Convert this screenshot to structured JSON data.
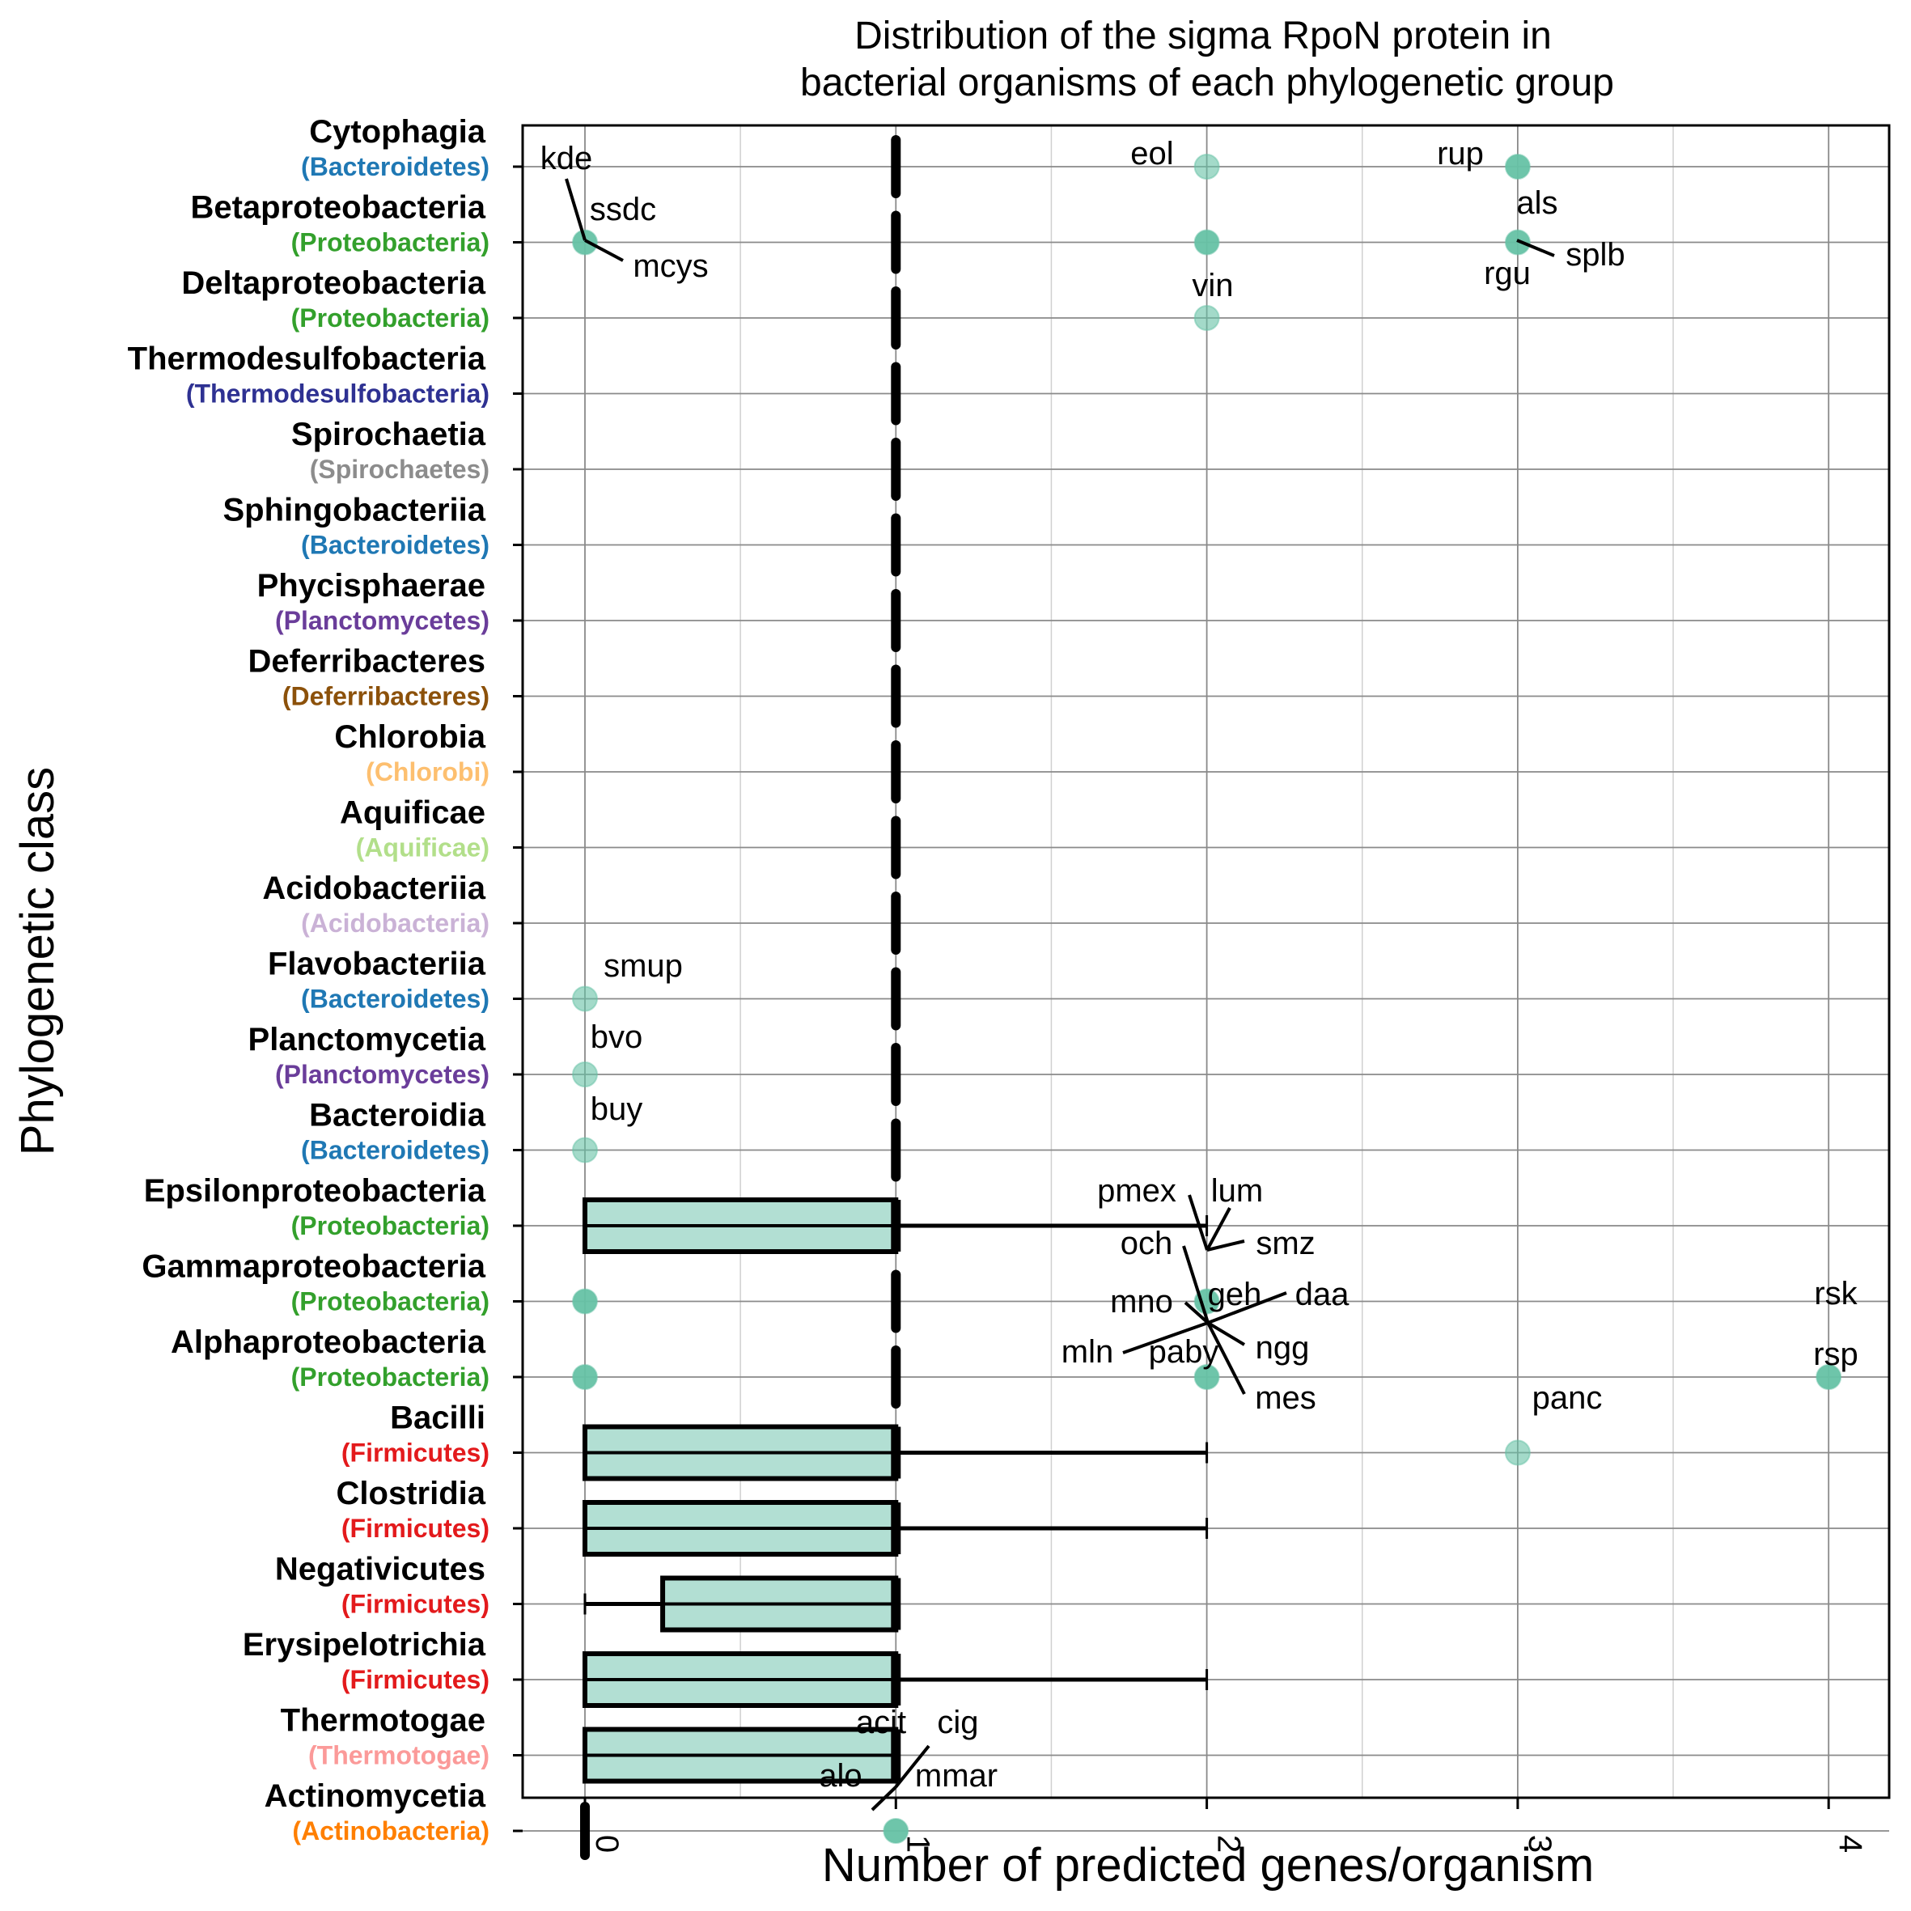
{
  "chart_data": {
    "type": "boxplot",
    "orientation": "horizontal",
    "title": [
      "Distribution of the sigma RpoN protein in",
      "bacterial organisms of each phylogenetic group"
    ],
    "xlabel": "Number of predicted genes/organism",
    "ylabel": "Phylogenetic class",
    "xlim": [
      -0.2,
      4.15
    ],
    "x_ticks": [
      0,
      1,
      2,
      3,
      4
    ],
    "x_tick_labels": [
      "0",
      "1",
      "2",
      "3",
      "4"
    ],
    "x_minor_ticks": [
      0.5,
      1.5,
      2.5,
      3.5
    ],
    "grid": true,
    "reference_line": {
      "x": 1,
      "style": "dashed",
      "color": "#000000"
    },
    "colors": {
      "box_fill": "#b2dfd3",
      "point": "#66c2a5",
      "box_stroke": "#000000"
    },
    "categories": [
      {
        "name": "Cytophagia",
        "phylum": "(Bacteroidetes)",
        "phylum_color": "#1f78b4"
      },
      {
        "name": "Betaproteobacteria",
        "phylum": "(Proteobacteria)",
        "phylum_color": "#33a02c"
      },
      {
        "name": "Deltaproteobacteria",
        "phylum": "(Proteobacteria)",
        "phylum_color": "#33a02c"
      },
      {
        "name": "Thermodesulfobacteria",
        "phylum": "(Thermodesulfobacteria)",
        "phylum_color": "#2e3192"
      },
      {
        "name": "Spirochaetia",
        "phylum": "(Spirochaetes)",
        "phylum_color": "#8c8c8c"
      },
      {
        "name": "Sphingobacteriia",
        "phylum": "(Bacteroidetes)",
        "phylum_color": "#1f78b4"
      },
      {
        "name": "Phycisphaerae",
        "phylum": "(Planctomycetes)",
        "phylum_color": "#6a3d9a"
      },
      {
        "name": "Deferribacteres",
        "phylum": "(Deferribacteres)",
        "phylum_color": "#8c510a"
      },
      {
        "name": "Chlorobia",
        "phylum": "(Chlorobi)",
        "phylum_color": "#fdbf6f"
      },
      {
        "name": "Aquificae",
        "phylum": "(Aquificae)",
        "phylum_color": "#b2df8a"
      },
      {
        "name": "Acidobacteriia",
        "phylum": "(Acidobacteria)",
        "phylum_color": "#cab2d6"
      },
      {
        "name": "Flavobacteriia",
        "phylum": "(Bacteroidetes)",
        "phylum_color": "#1f78b4"
      },
      {
        "name": "Planctomycetia",
        "phylum": "(Planctomycetes)",
        "phylum_color": "#6a3d9a"
      },
      {
        "name": "Bacteroidia",
        "phylum": "(Bacteroidetes)",
        "phylum_color": "#1f78b4"
      },
      {
        "name": "Epsilonproteobacteria",
        "phylum": "(Proteobacteria)",
        "phylum_color": "#33a02c"
      },
      {
        "name": "Gammaproteobacteria",
        "phylum": "(Proteobacteria)",
        "phylum_color": "#33a02c"
      },
      {
        "name": "Alphaproteobacteria",
        "phylum": "(Proteobacteria)",
        "phylum_color": "#33a02c"
      },
      {
        "name": "Bacilli",
        "phylum": "(Firmicutes)",
        "phylum_color": "#e31a1c"
      },
      {
        "name": "Clostridia",
        "phylum": "(Firmicutes)",
        "phylum_color": "#e31a1c"
      },
      {
        "name": "Negativicutes",
        "phylum": "(Firmicutes)",
        "phylum_color": "#e31a1c"
      },
      {
        "name": "Erysipelotrichia",
        "phylum": "(Firmicutes)",
        "phylum_color": "#e31a1c"
      },
      {
        "name": "Thermotogae",
        "phylum": "(Thermotogae)",
        "phylum_color": "#fb9a99"
      },
      {
        "name": "Actinomycetia",
        "phylum": "(Actinobacteria)",
        "phylum_color": "#ff7f00"
      }
    ],
    "boxes": [
      {
        "category": "Epsilonproteobacteria",
        "whisker_low": 0,
        "q1": 0,
        "median": 1,
        "q3": 1,
        "whisker_high": 2
      },
      {
        "category": "Bacilli",
        "whisker_low": 0,
        "q1": 0,
        "median": 1,
        "q3": 1,
        "whisker_high": 2
      },
      {
        "category": "Clostridia",
        "whisker_low": 0,
        "q1": 0,
        "median": 1,
        "q3": 1,
        "whisker_high": 2
      },
      {
        "category": "Negativicutes",
        "whisker_low": 0,
        "q1": 0.25,
        "median": 1,
        "q3": 1,
        "whisker_high": 1
      },
      {
        "category": "Erysipelotrichia",
        "whisker_low": 0,
        "q1": 0,
        "median": 1,
        "q3": 1,
        "whisker_high": 2
      },
      {
        "category": "Thermotogae",
        "whisker_low": 0,
        "q1": 0,
        "median": 1,
        "q3": 1,
        "whisker_high": 1
      },
      {
        "category": "Actinomycetia",
        "whisker_low": 0,
        "q1": 0,
        "median": 0,
        "q3": 0,
        "whisker_high": 0
      }
    ],
    "medians_only": [
      "Cytophagia",
      "Betaproteobacteria",
      "Deltaproteobacteria",
      "Thermodesulfobacteria",
      "Spirochaetia",
      "Sphingobacteriia",
      "Phycisphaerae",
      "Deferribacteres",
      "Chlorobia",
      "Aquificae",
      "Acidobacteriia",
      "Flavobacteriia",
      "Planctomycetia",
      "Bacteroidia",
      "Gammaproteobacteria",
      "Alphaproteobacteria"
    ],
    "points": [
      {
        "category": "Cytophagia",
        "x": 2,
        "density": "single"
      },
      {
        "category": "Cytophagia",
        "x": 3,
        "density": "multiple"
      },
      {
        "category": "Betaproteobacteria",
        "x": 0,
        "density": "multiple"
      },
      {
        "category": "Betaproteobacteria",
        "x": 2,
        "density": "multiple"
      },
      {
        "category": "Betaproteobacteria",
        "x": 3,
        "density": "multiple"
      },
      {
        "category": "Deltaproteobacteria",
        "x": 2,
        "density": "single"
      },
      {
        "category": "Flavobacteriia",
        "x": 0,
        "density": "single"
      },
      {
        "category": "Planctomycetia",
        "x": 0,
        "density": "single"
      },
      {
        "category": "Bacteroidia",
        "x": 0,
        "density": "single"
      },
      {
        "category": "Gammaproteobacteria",
        "x": 0,
        "density": "multiple"
      },
      {
        "category": "Gammaproteobacteria",
        "x": 2,
        "density": "multiple"
      },
      {
        "category": "Alphaproteobacteria",
        "x": 0,
        "density": "multiple"
      },
      {
        "category": "Alphaproteobacteria",
        "x": 2,
        "density": "multiple"
      },
      {
        "category": "Alphaproteobacteria",
        "x": 4,
        "density": "multiple"
      },
      {
        "category": "Bacilli",
        "x": 3,
        "density": "single"
      },
      {
        "category": "Actinomycetia",
        "x": 1,
        "density": "multiple"
      }
    ],
    "annotations": [
      {
        "text": "kde",
        "category": "Cytophagia",
        "x": 0
      },
      {
        "text": "ssdc",
        "category": "Betaproteobacteria",
        "x": 0
      },
      {
        "text": "mcys",
        "category": "Betaproteobacteria",
        "x": 0
      },
      {
        "text": "eol",
        "category": "Cytophagia",
        "x": 2
      },
      {
        "text": "rup",
        "category": "Cytophagia",
        "x": 3
      },
      {
        "text": "als",
        "category": "Betaproteobacteria",
        "x": 3
      },
      {
        "text": "splb",
        "category": "Betaproteobacteria",
        "x": 3
      },
      {
        "text": "rgu",
        "category": "Betaproteobacteria",
        "x": 3
      },
      {
        "text": "vin",
        "category": "Deltaproteobacteria",
        "x": 2
      },
      {
        "text": "smup",
        "category": "Flavobacteriia",
        "x": 0
      },
      {
        "text": "bvo",
        "category": "Planctomycetia",
        "x": 0
      },
      {
        "text": "buy",
        "category": "Bacteroidia",
        "x": 0
      },
      {
        "text": "pmex",
        "category": "Gammaproteobacteria",
        "x": 2
      },
      {
        "text": "lum",
        "category": "Gammaproteobacteria",
        "x": 2
      },
      {
        "text": "smz",
        "category": "Gammaproteobacteria",
        "x": 2
      },
      {
        "text": "och",
        "category": "Alphaproteobacteria",
        "x": 2
      },
      {
        "text": "mno",
        "category": "Alphaproteobacteria",
        "x": 2
      },
      {
        "text": "geh",
        "category": "Alphaproteobacteria",
        "x": 2
      },
      {
        "text": "daa",
        "category": "Alphaproteobacteria",
        "x": 2
      },
      {
        "text": "mln",
        "category": "Alphaproteobacteria",
        "x": 2
      },
      {
        "text": "paby",
        "category": "Alphaproteobacteria",
        "x": 2
      },
      {
        "text": "ngg",
        "category": "Alphaproteobacteria",
        "x": 2
      },
      {
        "text": "mes",
        "category": "Alphaproteobacteria",
        "x": 2
      },
      {
        "text": "rsk",
        "category": "Alphaproteobacteria",
        "x": 4
      },
      {
        "text": "rsp",
        "category": "Alphaproteobacteria",
        "x": 4
      },
      {
        "text": "panc",
        "category": "Bacilli",
        "x": 3
      },
      {
        "text": "acit",
        "category": "Actinomycetia",
        "x": 1
      },
      {
        "text": "cig",
        "category": "Actinomycetia",
        "x": 1
      },
      {
        "text": "alo",
        "category": "Actinomycetia",
        "x": 1
      },
      {
        "text": "mmar",
        "category": "Actinomycetia",
        "x": 1
      }
    ]
  }
}
